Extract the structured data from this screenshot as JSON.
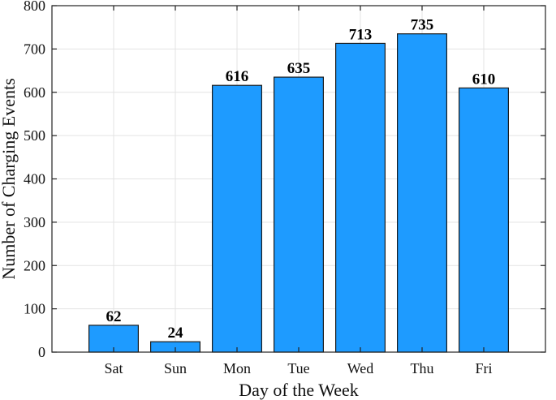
{
  "chart_data": {
    "type": "bar",
    "title": "",
    "xlabel": "Day of the Week",
    "ylabel": "Number of Charging Events",
    "categories": [
      "Sat",
      "Sun",
      "Mon",
      "Tue",
      "Wed",
      "Thu",
      "Fri"
    ],
    "values": [
      62,
      24,
      616,
      635,
      713,
      735,
      610
    ],
    "data_labels": [
      "62",
      "24",
      "616",
      "635",
      "713",
      "735",
      "610"
    ],
    "ylim": [
      0,
      800
    ],
    "yticks": [
      0,
      100,
      200,
      300,
      400,
      500,
      600,
      700,
      800
    ],
    "grid": true,
    "bar_color": "#1E9BFF",
    "edge_color": "#1B1B1B"
  }
}
